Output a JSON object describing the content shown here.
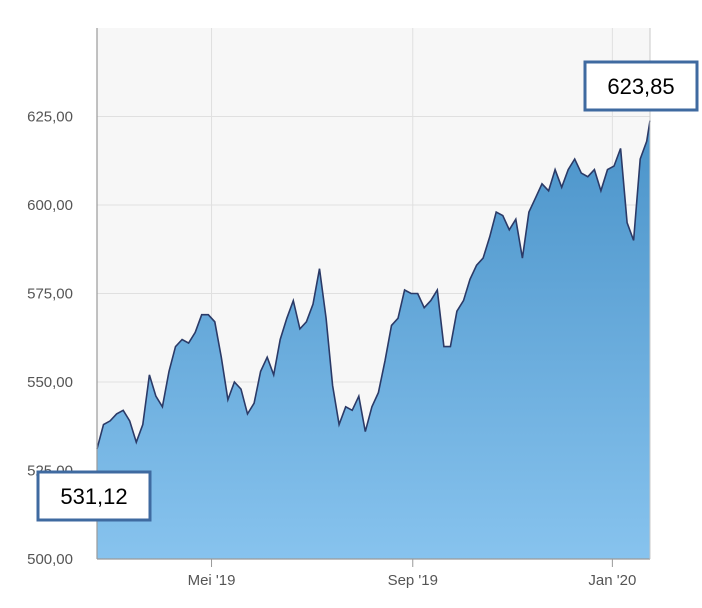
{
  "chart_data": {
    "type": "area",
    "title": "",
    "xlabel": "",
    "ylabel": "",
    "ylim": [
      500,
      650
    ],
    "xlim": [
      "2019-02-20",
      "2020-01-24"
    ],
    "grid": true,
    "y_ticks": [
      {
        "value": 500,
        "label": "500,00"
      },
      {
        "value": 525,
        "label": "525,00"
      },
      {
        "value": 550,
        "label": "550,00"
      },
      {
        "value": 575,
        "label": "575,00"
      },
      {
        "value": 600,
        "label": "600,00"
      },
      {
        "value": 625,
        "label": "625,00"
      }
    ],
    "x_ticks": [
      {
        "value": "2019-05-01",
        "label": "Mei '19"
      },
      {
        "value": "2019-09-01",
        "label": "Sep '19"
      },
      {
        "value": "2020-01-01",
        "label": "Jan '20"
      }
    ],
    "series": [
      {
        "x": [
          "2019-02-20",
          "2019-02-24",
          "2019-02-28",
          "2019-03-04",
          "2019-03-08",
          "2019-03-12",
          "2019-03-16",
          "2019-03-20",
          "2019-03-24",
          "2019-03-28",
          "2019-04-01",
          "2019-04-05",
          "2019-04-09",
          "2019-04-13",
          "2019-04-17",
          "2019-04-21",
          "2019-04-25",
          "2019-04-29",
          "2019-05-03",
          "2019-05-07",
          "2019-05-11",
          "2019-05-15",
          "2019-05-19",
          "2019-05-23",
          "2019-05-27",
          "2019-05-31",
          "2019-06-04",
          "2019-06-08",
          "2019-06-12",
          "2019-06-16",
          "2019-06-20",
          "2019-06-24",
          "2019-06-28",
          "2019-07-02",
          "2019-07-06",
          "2019-07-10",
          "2019-07-14",
          "2019-07-18",
          "2019-07-22",
          "2019-07-26",
          "2019-07-30",
          "2019-08-03",
          "2019-08-07",
          "2019-08-11",
          "2019-08-15",
          "2019-08-19",
          "2019-08-23",
          "2019-08-27",
          "2019-08-31",
          "2019-09-04",
          "2019-09-08",
          "2019-09-12",
          "2019-09-16",
          "2019-09-20",
          "2019-09-24",
          "2019-09-28",
          "2019-10-02",
          "2019-10-06",
          "2019-10-10",
          "2019-10-14",
          "2019-10-18",
          "2019-10-22",
          "2019-10-26",
          "2019-10-30",
          "2019-11-03",
          "2019-11-07",
          "2019-11-11",
          "2019-11-15",
          "2019-11-19",
          "2019-11-23",
          "2019-11-27",
          "2019-12-01",
          "2019-12-05",
          "2019-12-09",
          "2019-12-13",
          "2019-12-17",
          "2019-12-21",
          "2019-12-25",
          "2019-12-29",
          "2020-01-02",
          "2020-01-06",
          "2020-01-10",
          "2020-01-14",
          "2020-01-18",
          "2020-01-22",
          "2020-01-24"
        ],
        "values": [
          531.1,
          538,
          539,
          541,
          542,
          539,
          533,
          538,
          552,
          546,
          543,
          553,
          560,
          562,
          561,
          564,
          569,
          569,
          567,
          557,
          545,
          550,
          548,
          541,
          544,
          553,
          557,
          552,
          562,
          568,
          573,
          565,
          567,
          572,
          582,
          568,
          549,
          538,
          543,
          542,
          546,
          536,
          543,
          547,
          556,
          566,
          568,
          576,
          575,
          575,
          571,
          573,
          576,
          560,
          560,
          570,
          573,
          579,
          583,
          585,
          591,
          598,
          597,
          593,
          596,
          585,
          598,
          602,
          606,
          604,
          610,
          605,
          610,
          613,
          609,
          608,
          610,
          604,
          610,
          611,
          616,
          595,
          590,
          613,
          618,
          623.85
        ]
      }
    ],
    "annotations": [
      {
        "label": "531,12",
        "value": 531.12,
        "at": "start"
      },
      {
        "label": "623,85",
        "value": 623.85,
        "at": "end"
      }
    ]
  },
  "colors": {
    "area_top": "#4a93c9",
    "area_bottom": "#87c3ee",
    "line": "#2b3a67",
    "grid": "#e0e0e0",
    "plot_bg": "#f7f7f7",
    "callout_border": "#3f6aa0"
  }
}
